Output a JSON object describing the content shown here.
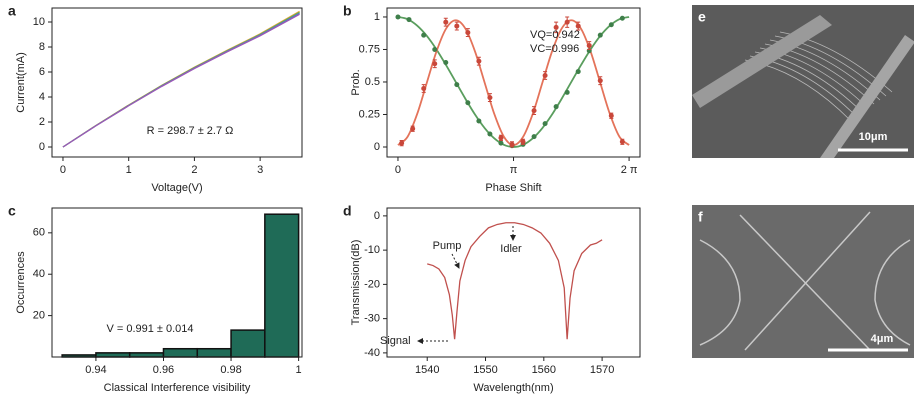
{
  "chart_data": [
    {
      "type": "line",
      "panel": "a",
      "xlabel": "Voltage(V)",
      "ylabel": "Current(mA)",
      "annotations": [
        "R = 298.7 ± 2.7 Ω"
      ],
      "x": [
        0,
        0.5,
        1,
        1.5,
        2,
        2.5,
        3,
        3.6
      ],
      "series": [
        {
          "color": "#e8a33b",
          "values": [
            0,
            1.72,
            3.36,
            4.92,
            6.38,
            7.74,
            9.05,
            10.85
          ]
        },
        {
          "color": "#6ab04c",
          "values": [
            0,
            1.71,
            3.34,
            4.9,
            6.35,
            7.7,
            9.0,
            10.78
          ]
        },
        {
          "color": "#4a7fc1",
          "values": [
            0,
            1.7,
            3.32,
            4.87,
            6.31,
            7.66,
            8.95,
            10.7
          ]
        },
        {
          "color": "#9b59b6",
          "values": [
            0,
            1.69,
            3.3,
            4.84,
            6.28,
            7.62,
            8.9,
            10.62
          ]
        }
      ],
      "xlim": [
        -0.167,
        3.637
      ],
      "ylim": [
        -0.8,
        11.12
      ],
      "xticks": [
        0,
        1,
        2,
        3
      ],
      "yticks": [
        0,
        2,
        4,
        6,
        8,
        10
      ]
    },
    {
      "type": "scatter",
      "panel": "b",
      "xlabel": "Phase Shift",
      "ylabel": "Prob.",
      "annotations": [
        "VQ=0.942",
        "VC=0.996"
      ],
      "series": [
        {
          "style": "line",
          "color": "#5a9e5e",
          "x": [
            0,
            0.2618,
            0.5236,
            0.7854,
            1.0472,
            1.309,
            1.5708,
            1.8326,
            2.0944,
            2.3562,
            2.618,
            2.8798,
            3.1416,
            3.4034,
            3.6652,
            3.927,
            4.1888,
            4.4506,
            4.7124,
            4.9742,
            5.236,
            5.4978,
            5.7596,
            6.0214,
            6.2832
          ],
          "values": [
            1,
            0.983,
            0.933,
            0.854,
            0.75,
            0.629,
            0.5,
            0.371,
            0.25,
            0.146,
            0.067,
            0.017,
            0,
            0.017,
            0.067,
            0.146,
            0.25,
            0.371,
            0.5,
            0.629,
            0.75,
            0.854,
            0.933,
            0.983,
            1
          ]
        },
        {
          "style": "line",
          "color": "#e4735a",
          "x": [
            0,
            0.2618,
            0.5236,
            0.7854,
            1.0472,
            1.309,
            1.5708,
            1.8326,
            2.0944,
            2.3562,
            2.618,
            2.8798,
            3.1416,
            3.4034,
            3.6652,
            3.927,
            4.1888,
            4.4506,
            4.7124,
            4.9742,
            5.236,
            5.4978,
            5.7596,
            6.0214,
            6.2832
          ],
          "values": [
            0.015,
            0.079,
            0.255,
            0.495,
            0.735,
            0.911,
            0.975,
            0.911,
            0.735,
            0.495,
            0.255,
            0.079,
            0.015,
            0.079,
            0.255,
            0.495,
            0.735,
            0.911,
            0.975,
            0.911,
            0.735,
            0.495,
            0.255,
            0.079,
            0.015
          ]
        },
        {
          "style": "points",
          "color": "#3f7f4a",
          "x": [
            0,
            0.3,
            0.7,
            1.0,
            1.3,
            1.6,
            1.9,
            2.2,
            2.5,
            2.8,
            3.1,
            3.4,
            3.7,
            4.0,
            4.3,
            4.6,
            4.9,
            5.2,
            5.5,
            5.8,
            6.1
          ],
          "values": [
            1.0,
            0.98,
            0.86,
            0.75,
            0.65,
            0.48,
            0.34,
            0.2,
            0.1,
            0.03,
            0.01,
            0.02,
            0.08,
            0.18,
            0.31,
            0.42,
            0.58,
            0.74,
            0.86,
            0.94,
            0.99
          ]
        },
        {
          "style": "points",
          "color": "#c9473a",
          "x": [
            0.1,
            0.4,
            0.7,
            1.0,
            1.3,
            1.6,
            1.9,
            2.2,
            2.5,
            2.8,
            3.1,
            3.4,
            3.7,
            4.0,
            4.3,
            4.6,
            4.9,
            5.2,
            5.5,
            5.8,
            6.1
          ],
          "values": [
            0.03,
            0.14,
            0.45,
            0.64,
            0.96,
            0.93,
            0.88,
            0.66,
            0.38,
            0.07,
            0.02,
            0.04,
            0.28,
            0.55,
            0.92,
            0.96,
            0.93,
            0.78,
            0.51,
            0.24,
            0.04
          ],
          "errors": [
            0.02,
            0.02,
            0.03,
            0.03,
            0.03,
            0.03,
            0.03,
            0.03,
            0.03,
            0.02,
            0.02,
            0.02,
            0.03,
            0.03,
            0.04,
            0.04,
            0.03,
            0.03,
            0.03,
            0.02,
            0.02
          ]
        }
      ],
      "xlim": [
        -0.298,
        6.58
      ],
      "ylim": [
        -0.077,
        1.069
      ],
      "xticks": [
        0,
        {
          "value": 3.1416,
          "label": "π"
        },
        {
          "value": 6.2832,
          "label": "2 π"
        }
      ],
      "yticks": [
        0,
        0.25,
        0.5,
        0.75,
        1
      ]
    },
    {
      "type": "histogram",
      "panel": "c",
      "xlabel": "Classical Interference visibility",
      "ylabel": "Occurrences",
      "annotations": [
        "V = 0.991 ± 0.014"
      ],
      "color": "#1f6b57",
      "bins": [
        0.93,
        0.94,
        0.95,
        0.96,
        0.97,
        0.98,
        0.99,
        1.0
      ],
      "values": [
        1,
        2,
        2,
        4,
        4,
        13,
        69
      ],
      "xlim": [
        0.927,
        1.001
      ],
      "ylim": [
        0,
        72
      ],
      "xticks": [
        0.94,
        0.96,
        0.98,
        1
      ],
      "yticks": [
        20,
        40,
        60
      ]
    },
    {
      "type": "line",
      "panel": "d",
      "xlabel": "Wavelength(nm)",
      "ylabel": "Transmission(dB)",
      "annotations": [
        "Pump",
        "Idler",
        "Signal"
      ],
      "color": "#c0504d",
      "x": [
        1540,
        1541,
        1542,
        1543,
        1543.8,
        1544.3,
        1544.7,
        1545.1,
        1545.6,
        1546.5,
        1547.5,
        1549,
        1550.5,
        1552,
        1553.5,
        1555,
        1556.5,
        1558,
        1559.5,
        1561,
        1562.5,
        1563.5,
        1564,
        1564.5,
        1565.2,
        1566.5,
        1568,
        1569,
        1570
      ],
      "values": [
        -14,
        -14.5,
        -15.5,
        -18,
        -23,
        -29,
        -36,
        -28,
        -19,
        -13,
        -9,
        -6,
        -3.5,
        -2.5,
        -2,
        -2,
        -2.5,
        -3.5,
        -5,
        -8,
        -13,
        -21,
        -36,
        -24,
        -16,
        -11,
        -8.5,
        -8,
        -7
      ],
      "xlim": [
        1533.1,
        1576.5
      ],
      "ylim": [
        -41.2,
        2.3
      ],
      "xticks": [
        1540,
        1550,
        1560,
        1570
      ],
      "yticks": [
        0,
        -10,
        -20,
        -30,
        -40
      ]
    }
  ],
  "images": [
    {
      "label": "e",
      "scale_bar": "10μm"
    },
    {
      "label": "f",
      "scale_bar": "4μm"
    }
  ]
}
